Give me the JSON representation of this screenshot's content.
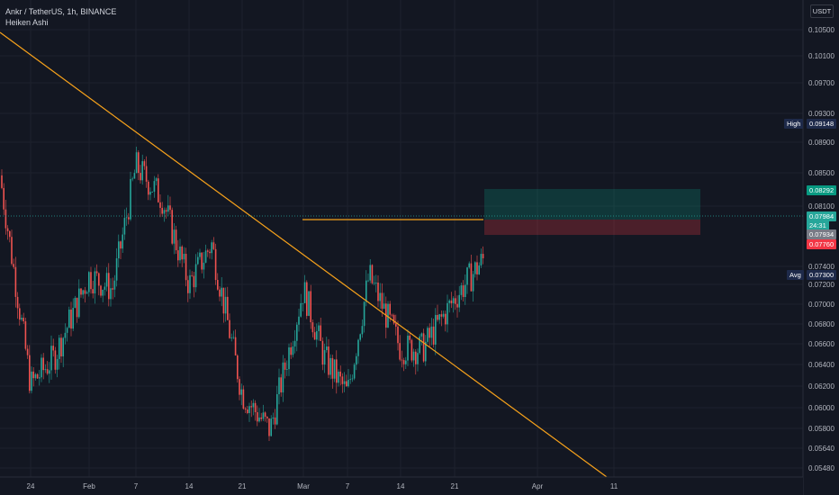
{
  "legend": {
    "symbol": "Ankr / TetherUS, 1h, BINANCE",
    "indicator": "Heiken Ashi"
  },
  "currency": "USDT",
  "price_axis": {
    "labels": [
      "0.10500",
      "0.10100",
      "0.09700",
      "0.09300",
      "0.08900",
      "0.08500",
      "0.08100",
      "0.07400",
      "0.07200",
      "0.07000",
      "0.06800",
      "0.06600",
      "0.06400",
      "0.06200",
      "0.06000",
      "0.05800",
      "0.05640",
      "0.05480"
    ],
    "min": 0.054,
    "max": 0.107
  },
  "time_axis": {
    "labels": [
      "24",
      "Feb",
      "7",
      "14",
      "21",
      "Mar",
      "7",
      "14",
      "21",
      "Apr",
      "11"
    ]
  },
  "markers": {
    "high": {
      "label": "High",
      "value": "0.09148"
    },
    "target": {
      "value": "0.08292",
      "color": "#089981"
    },
    "current": {
      "value": "0.07984",
      "countdown": "24:31",
      "color": "#26a69a"
    },
    "entry": {
      "value": "0.07934",
      "color": "#787b86"
    },
    "stop": {
      "value": "0.07760",
      "color": "#f23645"
    },
    "avg": {
      "label": "Avg",
      "value": "0.07300"
    }
  },
  "colors": {
    "background": "#131722",
    "up": "#26a69a",
    "down": "#ef5350",
    "trendline": "#f7a21b",
    "grid": "#1e222d"
  },
  "chart_data": {
    "type": "candlestick",
    "style": "Heiken Ashi",
    "timeframe": "1h",
    "x": [
      "Jan 20",
      "Jan 24",
      "Jan 28",
      "Feb 1",
      "Feb 4",
      "Feb 7",
      "Feb 10",
      "Feb 14",
      "Feb 17",
      "Feb 21",
      "Feb 24",
      "Mar 1",
      "Mar 4",
      "Mar 7",
      "Mar 10",
      "Mar 14",
      "Mar 17",
      "Mar 21",
      "Mar 24"
    ],
    "close": [
      0.089,
      0.066,
      0.069,
      0.078,
      0.0765,
      0.09,
      0.0865,
      0.077,
      0.0815,
      0.065,
      0.061,
      0.0765,
      0.069,
      0.065,
      0.078,
      0.07,
      0.07,
      0.0755,
      0.0798
    ],
    "ylim": [
      0.054,
      0.107
    ],
    "annotations": {
      "descending_trendline": [
        [
          "Jan 17",
          0.1045
        ],
        [
          "Apr 11",
          0.0548
        ]
      ],
      "resistance_line": 0.0798,
      "long_position": {
        "target": 0.08292,
        "entry": 0.07934,
        "stop": 0.0776
      }
    }
  }
}
